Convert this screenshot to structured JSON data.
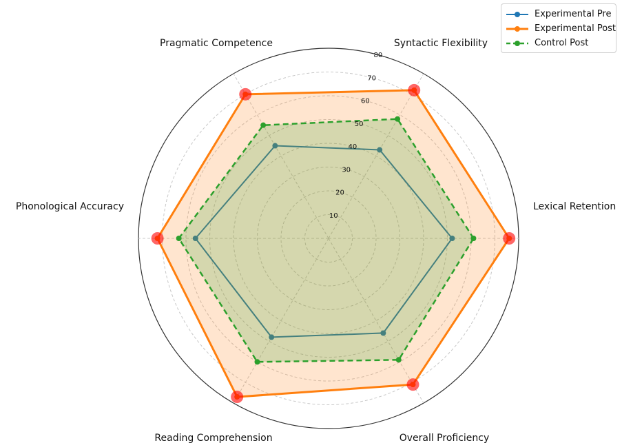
{
  "chart_data": {
    "type": "radar",
    "categories": [
      "Lexical Retention",
      "Syntactic Flexibility",
      "Pragmatic Competence",
      "Phonological Accuracy",
      "Reading Comprehension",
      "Overall Proficiency"
    ],
    "series": [
      {
        "name": "Experimental Pre",
        "values": [
          52,
          43,
          45,
          56,
          48,
          46
        ],
        "color": "#1f77b4",
        "line_style": "solid",
        "fill": false
      },
      {
        "name": "Experimental Post",
        "values": [
          76,
          72,
          70,
          72,
          77,
          71
        ],
        "color": "#ff7f0e",
        "line_style": "solid",
        "fill": true,
        "fill_color": "#ff7f0e"
      },
      {
        "name": "Control Post",
        "values": [
          61,
          58,
          55,
          63,
          60,
          59
        ],
        "color": "#2ca02c",
        "line_style": "dashed",
        "fill": true,
        "fill_color": "#2ca02c"
      }
    ],
    "highlight": {
      "series": "Experimental Post",
      "marker_color": "#ff0000",
      "categories": [
        "Lexical Retention",
        "Syntactic Flexibility",
        "Pragmatic Competence",
        "Phonological Accuracy",
        "Reading Comprehension",
        "Overall Proficiency"
      ]
    },
    "radial_ticks": [
      10,
      20,
      30,
      40,
      50,
      60,
      70,
      80
    ],
    "rlim": [
      0,
      80
    ],
    "grid": true,
    "legend_position": "top-right"
  }
}
